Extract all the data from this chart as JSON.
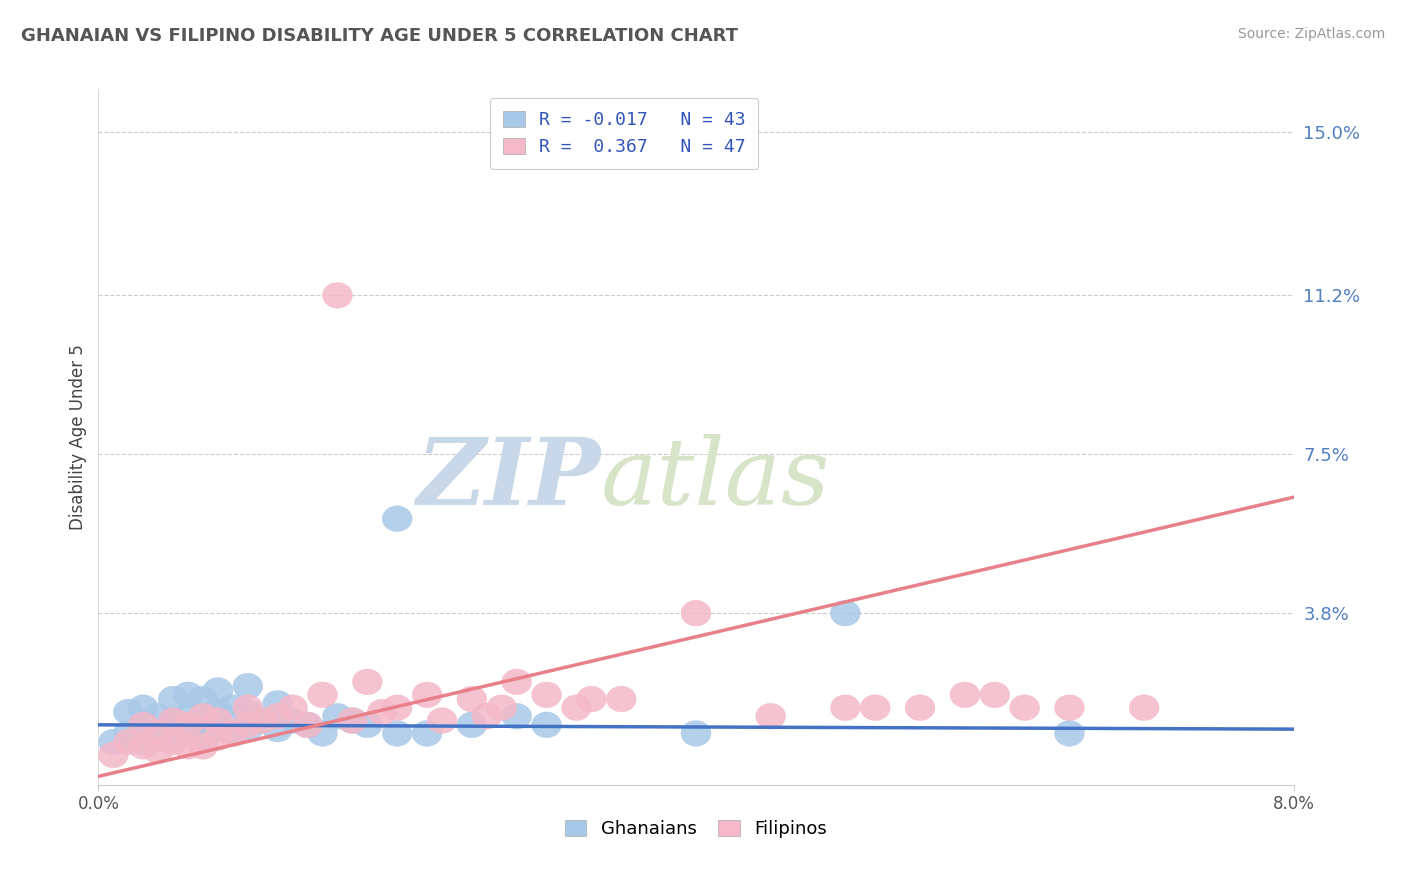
{
  "title": "GHANAIAN VS FILIPINO DISABILITY AGE UNDER 5 CORRELATION CHART",
  "source": "Source: ZipAtlas.com",
  "ylabel": "Disability Age Under 5",
  "xlim": [
    0.0,
    0.08
  ],
  "ylim": [
    -0.002,
    0.16
  ],
  "yticks": [
    0.038,
    0.075,
    0.112,
    0.15
  ],
  "ytick_labels": [
    "3.8%",
    "7.5%",
    "11.2%",
    "15.0%"
  ],
  "xticks": [
    0.0,
    0.08
  ],
  "xtick_labels": [
    "0.0%",
    "8.0%"
  ],
  "ghanaian_color": "#a8c8e8",
  "filipino_color": "#f4b8c8",
  "ghanaian_line_color": "#4472c4",
  "filipino_line_color": "#e8808a",
  "ghanaian_line_y0": 0.012,
  "ghanaian_line_y1": 0.011,
  "filipino_line_y0": 0.0,
  "filipino_line_y1": 0.065,
  "watermark_ZIP": "ZIP",
  "watermark_atlas": "atlas",
  "ghanaian_x": [
    0.001,
    0.002,
    0.002,
    0.003,
    0.003,
    0.003,
    0.004,
    0.004,
    0.005,
    0.005,
    0.005,
    0.006,
    0.006,
    0.006,
    0.007,
    0.007,
    0.007,
    0.008,
    0.008,
    0.008,
    0.009,
    0.009,
    0.01,
    0.01,
    0.01,
    0.011,
    0.012,
    0.012,
    0.013,
    0.014,
    0.015,
    0.016,
    0.017,
    0.018,
    0.02,
    0.02,
    0.022,
    0.025,
    0.028,
    0.03,
    0.04,
    0.05,
    0.065
  ],
  "ghanaian_y": [
    0.008,
    0.01,
    0.015,
    0.008,
    0.012,
    0.016,
    0.009,
    0.014,
    0.009,
    0.013,
    0.018,
    0.01,
    0.014,
    0.019,
    0.009,
    0.014,
    0.018,
    0.011,
    0.015,
    0.02,
    0.01,
    0.016,
    0.011,
    0.015,
    0.021,
    0.013,
    0.011,
    0.017,
    0.013,
    0.012,
    0.01,
    0.014,
    0.013,
    0.012,
    0.06,
    0.01,
    0.01,
    0.012,
    0.014,
    0.012,
    0.01,
    0.038,
    0.01
  ],
  "filipino_x": [
    0.001,
    0.002,
    0.003,
    0.003,
    0.004,
    0.004,
    0.005,
    0.005,
    0.006,
    0.006,
    0.007,
    0.007,
    0.008,
    0.008,
    0.009,
    0.01,
    0.01,
    0.011,
    0.012,
    0.013,
    0.014,
    0.015,
    0.016,
    0.017,
    0.018,
    0.019,
    0.02,
    0.022,
    0.023,
    0.025,
    0.026,
    0.027,
    0.028,
    0.03,
    0.032,
    0.033,
    0.035,
    0.04,
    0.045,
    0.05,
    0.052,
    0.055,
    0.058,
    0.06,
    0.062,
    0.065,
    0.07
  ],
  "filipino_y": [
    0.005,
    0.008,
    0.007,
    0.012,
    0.006,
    0.01,
    0.008,
    0.013,
    0.007,
    0.012,
    0.007,
    0.014,
    0.009,
    0.013,
    0.01,
    0.012,
    0.016,
    0.013,
    0.014,
    0.016,
    0.012,
    0.019,
    0.112,
    0.013,
    0.022,
    0.015,
    0.016,
    0.019,
    0.013,
    0.018,
    0.014,
    0.016,
    0.022,
    0.019,
    0.016,
    0.018,
    0.018,
    0.038,
    0.014,
    0.016,
    0.016,
    0.016,
    0.019,
    0.019,
    0.016,
    0.016,
    0.016
  ]
}
